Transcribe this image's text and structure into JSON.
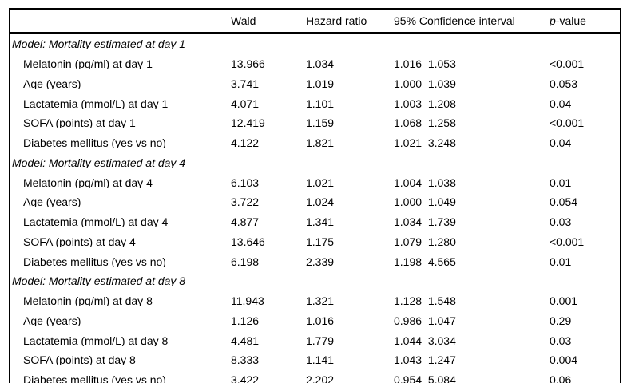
{
  "page": {
    "background_color": "#ffffff",
    "text_color": "#000000",
    "rule_color": "#000000"
  },
  "header": {
    "wald": "Wald",
    "hazard_ratio": "Hazard ratio",
    "confidence_interval": "95% Confidence interval",
    "p_italic": "p",
    "p_rest": "-value"
  },
  "groups": [
    {
      "title": "Model: Mortality estimated at day 1",
      "rows": [
        {
          "label": "Melatonin (pg/ml) at day 1",
          "wald": "13.966",
          "hr": "1.034",
          "ci": "1.016–1.053",
          "p": "<0.001"
        },
        {
          "label": "Age (years)",
          "wald": "3.741",
          "hr": "1.019",
          "ci": "1.000–1.039",
          "p": "0.053"
        },
        {
          "label": "Lactatemia (mmol/L) at day 1",
          "wald": "4.071",
          "hr": "1.101",
          "ci": "1.003–1.208",
          "p": "0.04"
        },
        {
          "label": "SOFA (points) at day 1",
          "wald": "12.419",
          "hr": "1.159",
          "ci": "1.068–1.258",
          "p": "<0.001"
        },
        {
          "label": "Diabetes mellitus (yes vs no)",
          "wald": "4.122",
          "hr": "1.821",
          "ci": "1.021–3.248",
          "p": "0.04"
        }
      ]
    },
    {
      "title": "Model: Mortality estimated at day 4",
      "rows": [
        {
          "label": "Melatonin (pg/ml) at day 4",
          "wald": "6.103",
          "hr": "1.021",
          "ci": "1.004–1.038",
          "p": "0.01"
        },
        {
          "label": "Age (years)",
          "wald": "3.722",
          "hr": "1.024",
          "ci": "1.000–1.049",
          "p": "0.054"
        },
        {
          "label": "Lactatemia (mmol/L) at day 4",
          "wald": "4.877",
          "hr": "1.341",
          "ci": "1.034–1.739",
          "p": "0.03"
        },
        {
          "label": "SOFA (points) at day 4",
          "wald": "13.646",
          "hr": "1.175",
          "ci": "1.079–1.280",
          "p": "<0.001"
        },
        {
          "label": "Diabetes mellitus (yes vs no)",
          "wald": "6.198",
          "hr": "2.339",
          "ci": "1.198–4.565",
          "p": "0.01"
        }
      ]
    },
    {
      "title": "Model: Mortality estimated at day 8",
      "rows": [
        {
          "label": "Melatonin (pg/ml) at day 8",
          "wald": "11.943",
          "hr": "1.321",
          "ci": "1.128–1.548",
          "p": "0.001"
        },
        {
          "label": "Age (years)",
          "wald": "1.126",
          "hr": "1.016",
          "ci": "0.986–1.047",
          "p": "0.29"
        },
        {
          "label": "Lactatemia (mmol/L) at day 8",
          "wald": "4.481",
          "hr": "1.779",
          "ci": "1.044–3.034",
          "p": "0.03"
        },
        {
          "label": "SOFA (points) at day 8",
          "wald": "8.333",
          "hr": "1.141",
          "ci": "1.043–1.247",
          "p": "0.004"
        },
        {
          "label": "Diabetes mellitus (yes vs no)",
          "wald": "3.422",
          "hr": "2.202",
          "ci": "0.954–5.084",
          "p": "0.06"
        }
      ]
    }
  ]
}
